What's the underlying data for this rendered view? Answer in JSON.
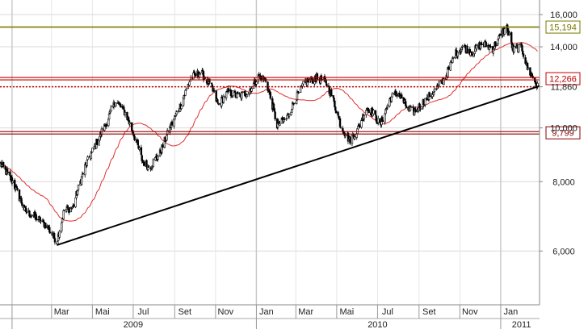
{
  "chart_data": {
    "type": "candlestick",
    "title": "",
    "y_scale": "log",
    "ylim": [
      4800,
      17000
    ],
    "xlim": [
      "2008-12-14",
      "2011-02-28"
    ],
    "grid": true,
    "y_ticks": [
      {
        "value": 6000,
        "label": "6,000"
      },
      {
        "value": 8000,
        "label": "8,000"
      },
      {
        "value": 10000,
        "label": "10,000"
      },
      {
        "value": 11860,
        "label": "11,860"
      },
      {
        "value": 14000,
        "label": "14,000"
      },
      {
        "value": 16000,
        "label": "16,000"
      }
    ],
    "x_month_ticks": [
      {
        "date": "2009-01-01",
        "label": ""
      },
      {
        "date": "2009-03-01",
        "label": "Mar"
      },
      {
        "date": "2009-05-01",
        "label": "Mai"
      },
      {
        "date": "2009-07-01",
        "label": "Jul"
      },
      {
        "date": "2009-09-01",
        "label": "Set"
      },
      {
        "date": "2009-11-01",
        "label": "Nov"
      },
      {
        "date": "2010-01-01",
        "label": "Jan"
      },
      {
        "date": "2010-03-01",
        "label": "Mar"
      },
      {
        "date": "2010-05-01",
        "label": "Mai"
      },
      {
        "date": "2010-07-01",
        "label": "Jul"
      },
      {
        "date": "2010-09-01",
        "label": "Set"
      },
      {
        "date": "2010-11-01",
        "label": "Nov"
      },
      {
        "date": "2011-01-01",
        "label": "Jan"
      }
    ],
    "x_year_ticks": [
      {
        "date": "2009-01-01",
        "label": ""
      },
      {
        "date": "2010-01-01",
        "label": ""
      },
      {
        "date": "2011-01-01",
        "label": ""
      }
    ],
    "x_year_labels": [
      {
        "date": "2009-07-01",
        "label": "2009"
      },
      {
        "date": "2010-07-01",
        "label": "2010"
      },
      {
        "date": "2011-02-01",
        "label": "2011"
      }
    ],
    "horizontal_levels": [
      {
        "value": 15194,
        "label": "15,194",
        "color": "#7a7a00",
        "style": "solid"
      },
      {
        "value": 12266,
        "label": "12,266",
        "color": "#c00000",
        "style": "double"
      },
      {
        "value": 11860,
        "label": "",
        "color": "#c00000",
        "style": "dotted"
      },
      {
        "value": 9799,
        "label": "9,799",
        "color": "#8b0000",
        "style": "double"
      }
    ],
    "trendline": {
      "color": "#000000",
      "start": {
        "date": "2009-03-09",
        "value": 6150
      },
      "end": {
        "date": "2011-02-28",
        "value": 11900
      }
    },
    "moving_average_color": "#e03030",
    "anchor_closes": [
      [
        "2008-12-15",
        8600
      ],
      [
        "2009-01-02",
        8000
      ],
      [
        "2009-01-20",
        7100
      ],
      [
        "2009-02-05",
        6900
      ],
      [
        "2009-02-20",
        6700
      ],
      [
        "2009-03-09",
        6250
      ],
      [
        "2009-03-20",
        7100
      ],
      [
        "2009-04-02",
        7200
      ],
      [
        "2009-04-20",
        8500
      ],
      [
        "2009-05-05",
        9300
      ],
      [
        "2009-05-20",
        10100
      ],
      [
        "2009-06-05",
        11200
      ],
      [
        "2009-06-20",
        10600
      ],
      [
        "2009-07-01",
        9800
      ],
      [
        "2009-07-15",
        8700
      ],
      [
        "2009-07-25",
        8500
      ],
      [
        "2009-08-10",
        9000
      ],
      [
        "2009-08-25",
        10000
      ],
      [
        "2009-09-10",
        11000
      ],
      [
        "2009-09-25",
        12300
      ],
      [
        "2009-10-10",
        12600
      ],
      [
        "2009-10-25",
        11900
      ],
      [
        "2009-11-05",
        11000
      ],
      [
        "2009-11-20",
        11600
      ],
      [
        "2009-12-05",
        11400
      ],
      [
        "2009-12-20",
        11600
      ],
      [
        "2010-01-05",
        12400
      ],
      [
        "2010-01-15",
        12200
      ],
      [
        "2010-02-01",
        10100
      ],
      [
        "2010-02-15",
        10400
      ],
      [
        "2010-03-01",
        11300
      ],
      [
        "2010-03-15",
        12100
      ],
      [
        "2010-04-01",
        12300
      ],
      [
        "2010-04-15",
        12100
      ],
      [
        "2010-04-25",
        11300
      ],
      [
        "2010-05-07",
        10100
      ],
      [
        "2010-05-20",
        9500
      ],
      [
        "2010-06-01",
        9900
      ],
      [
        "2010-06-15",
        10900
      ],
      [
        "2010-06-25",
        10600
      ],
      [
        "2010-07-05",
        10100
      ],
      [
        "2010-07-20",
        11300
      ],
      [
        "2010-08-01",
        11600
      ],
      [
        "2010-08-15",
        10800
      ],
      [
        "2010-08-25",
        10700
      ],
      [
        "2010-09-10",
        11200
      ],
      [
        "2010-09-25",
        11700
      ],
      [
        "2010-10-10",
        12300
      ],
      [
        "2010-10-25",
        13600
      ],
      [
        "2010-11-05",
        14000
      ],
      [
        "2010-11-20",
        13700
      ],
      [
        "2010-12-05",
        14200
      ],
      [
        "2010-12-20",
        13900
      ],
      [
        "2011-01-03",
        14800
      ],
      [
        "2011-01-10",
        15150
      ],
      [
        "2011-01-20",
        13800
      ],
      [
        "2011-02-01",
        14000
      ],
      [
        "2011-02-10",
        12800
      ],
      [
        "2011-02-20",
        12200
      ],
      [
        "2011-02-28",
        11650
      ]
    ]
  }
}
